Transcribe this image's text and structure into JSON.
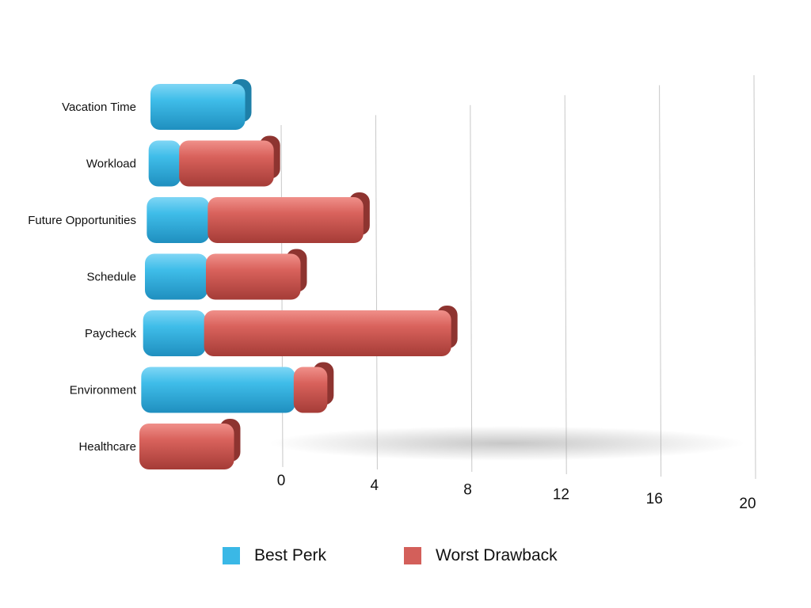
{
  "chart_data": {
    "type": "bar",
    "orientation": "horizontal",
    "stacked": true,
    "categories": [
      "Vacation Time",
      "Workload",
      "Future Opportunities",
      "Schedule",
      "Paycheck",
      "Environment",
      "Healthcare"
    ],
    "series": [
      {
        "name": "Best Perk",
        "values": [
          3,
          1,
          2,
          2,
          2,
          5,
          0
        ],
        "color": "#3ab8e6"
      },
      {
        "name": "Worst Drawback",
        "values": [
          0,
          3,
          5,
          3,
          8,
          1,
          3
        ],
        "color": "#d35f5a"
      }
    ],
    "xticks": [
      "0",
      "4",
      "8",
      "12",
      "16",
      "20"
    ],
    "xlim": [
      0,
      20
    ],
    "legend": "bottom",
    "grid": true,
    "title": "",
    "xlabel": "",
    "ylabel": ""
  }
}
